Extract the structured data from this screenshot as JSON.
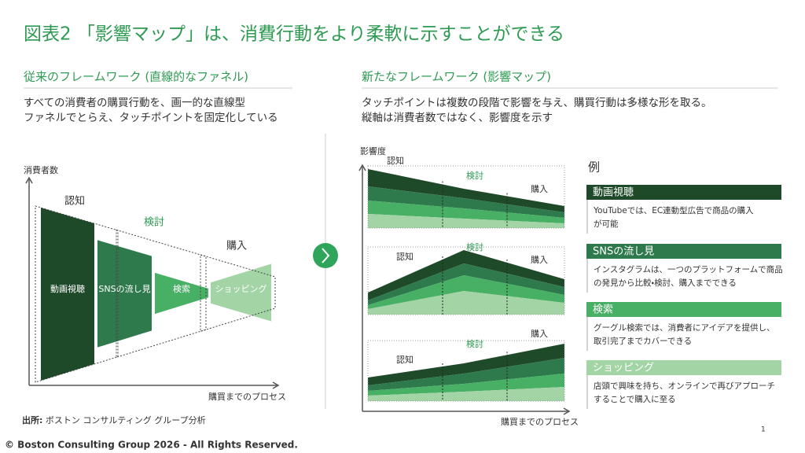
{
  "title": "図表2 「影響マップ」は、消費行動をより柔軟に示すことができる",
  "left": {
    "heading": "従来のフレームワーク (直線的なファネル)",
    "description": [
      "すべての消費者の購買行動を、画一的な直線型",
      "ファネルでとらえ、タッチポイントを固定化している"
    ],
    "y_axis": "消費者数",
    "x_axis": "購買までのプロセス",
    "stages": [
      "認知",
      "検討",
      "購入"
    ],
    "segments": [
      "動画視聴",
      "SNSの流し見",
      "検索",
      "ショッピング"
    ]
  },
  "right": {
    "heading": "新たなフレームワーク (影響マップ)",
    "description": [
      "タッチポイントは複数の段階で影響を与え、購買行動は多様な形を取る。",
      "縦軸は消費者数ではなく、影響度を示す"
    ],
    "y_axis": "影響度",
    "x_axis": "購買までのプロセス",
    "panels": [
      {
        "stages": [
          "認知",
          "検討",
          "購入"
        ]
      },
      {
        "stages": [
          "認知",
          "検討",
          "購入"
        ]
      },
      {
        "stages": [
          "認知",
          "検討",
          "購入"
        ]
      }
    ]
  },
  "legend": {
    "title": "例",
    "items": [
      {
        "label": "動画視聴",
        "description": [
          "YouTubeでは、EC連動型広告で商品の購入",
          "が可能"
        ]
      },
      {
        "label": "SNSの流し見",
        "description": [
          "インスタグラムは、一つのプラットフォームで商品",
          "の発見から比較・検討、購入までできる"
        ]
      },
      {
        "label": "検索",
        "description": [
          "グーグル検索では、消費者にアイデアを提供し、",
          "取引完了までカバーできる"
        ]
      },
      {
        "label": "ショッピング",
        "description": [
          "店頭で興味を持ち、オンラインで再びアプローチ",
          "することで購入に至る"
        ]
      }
    ]
  },
  "source": {
    "label": "出所:",
    "text": "ボストン コンサルティング グループ分析"
  },
  "page_number": "1",
  "copyright": "© Boston Consulting Group 2026 - All Rights Reserved."
}
